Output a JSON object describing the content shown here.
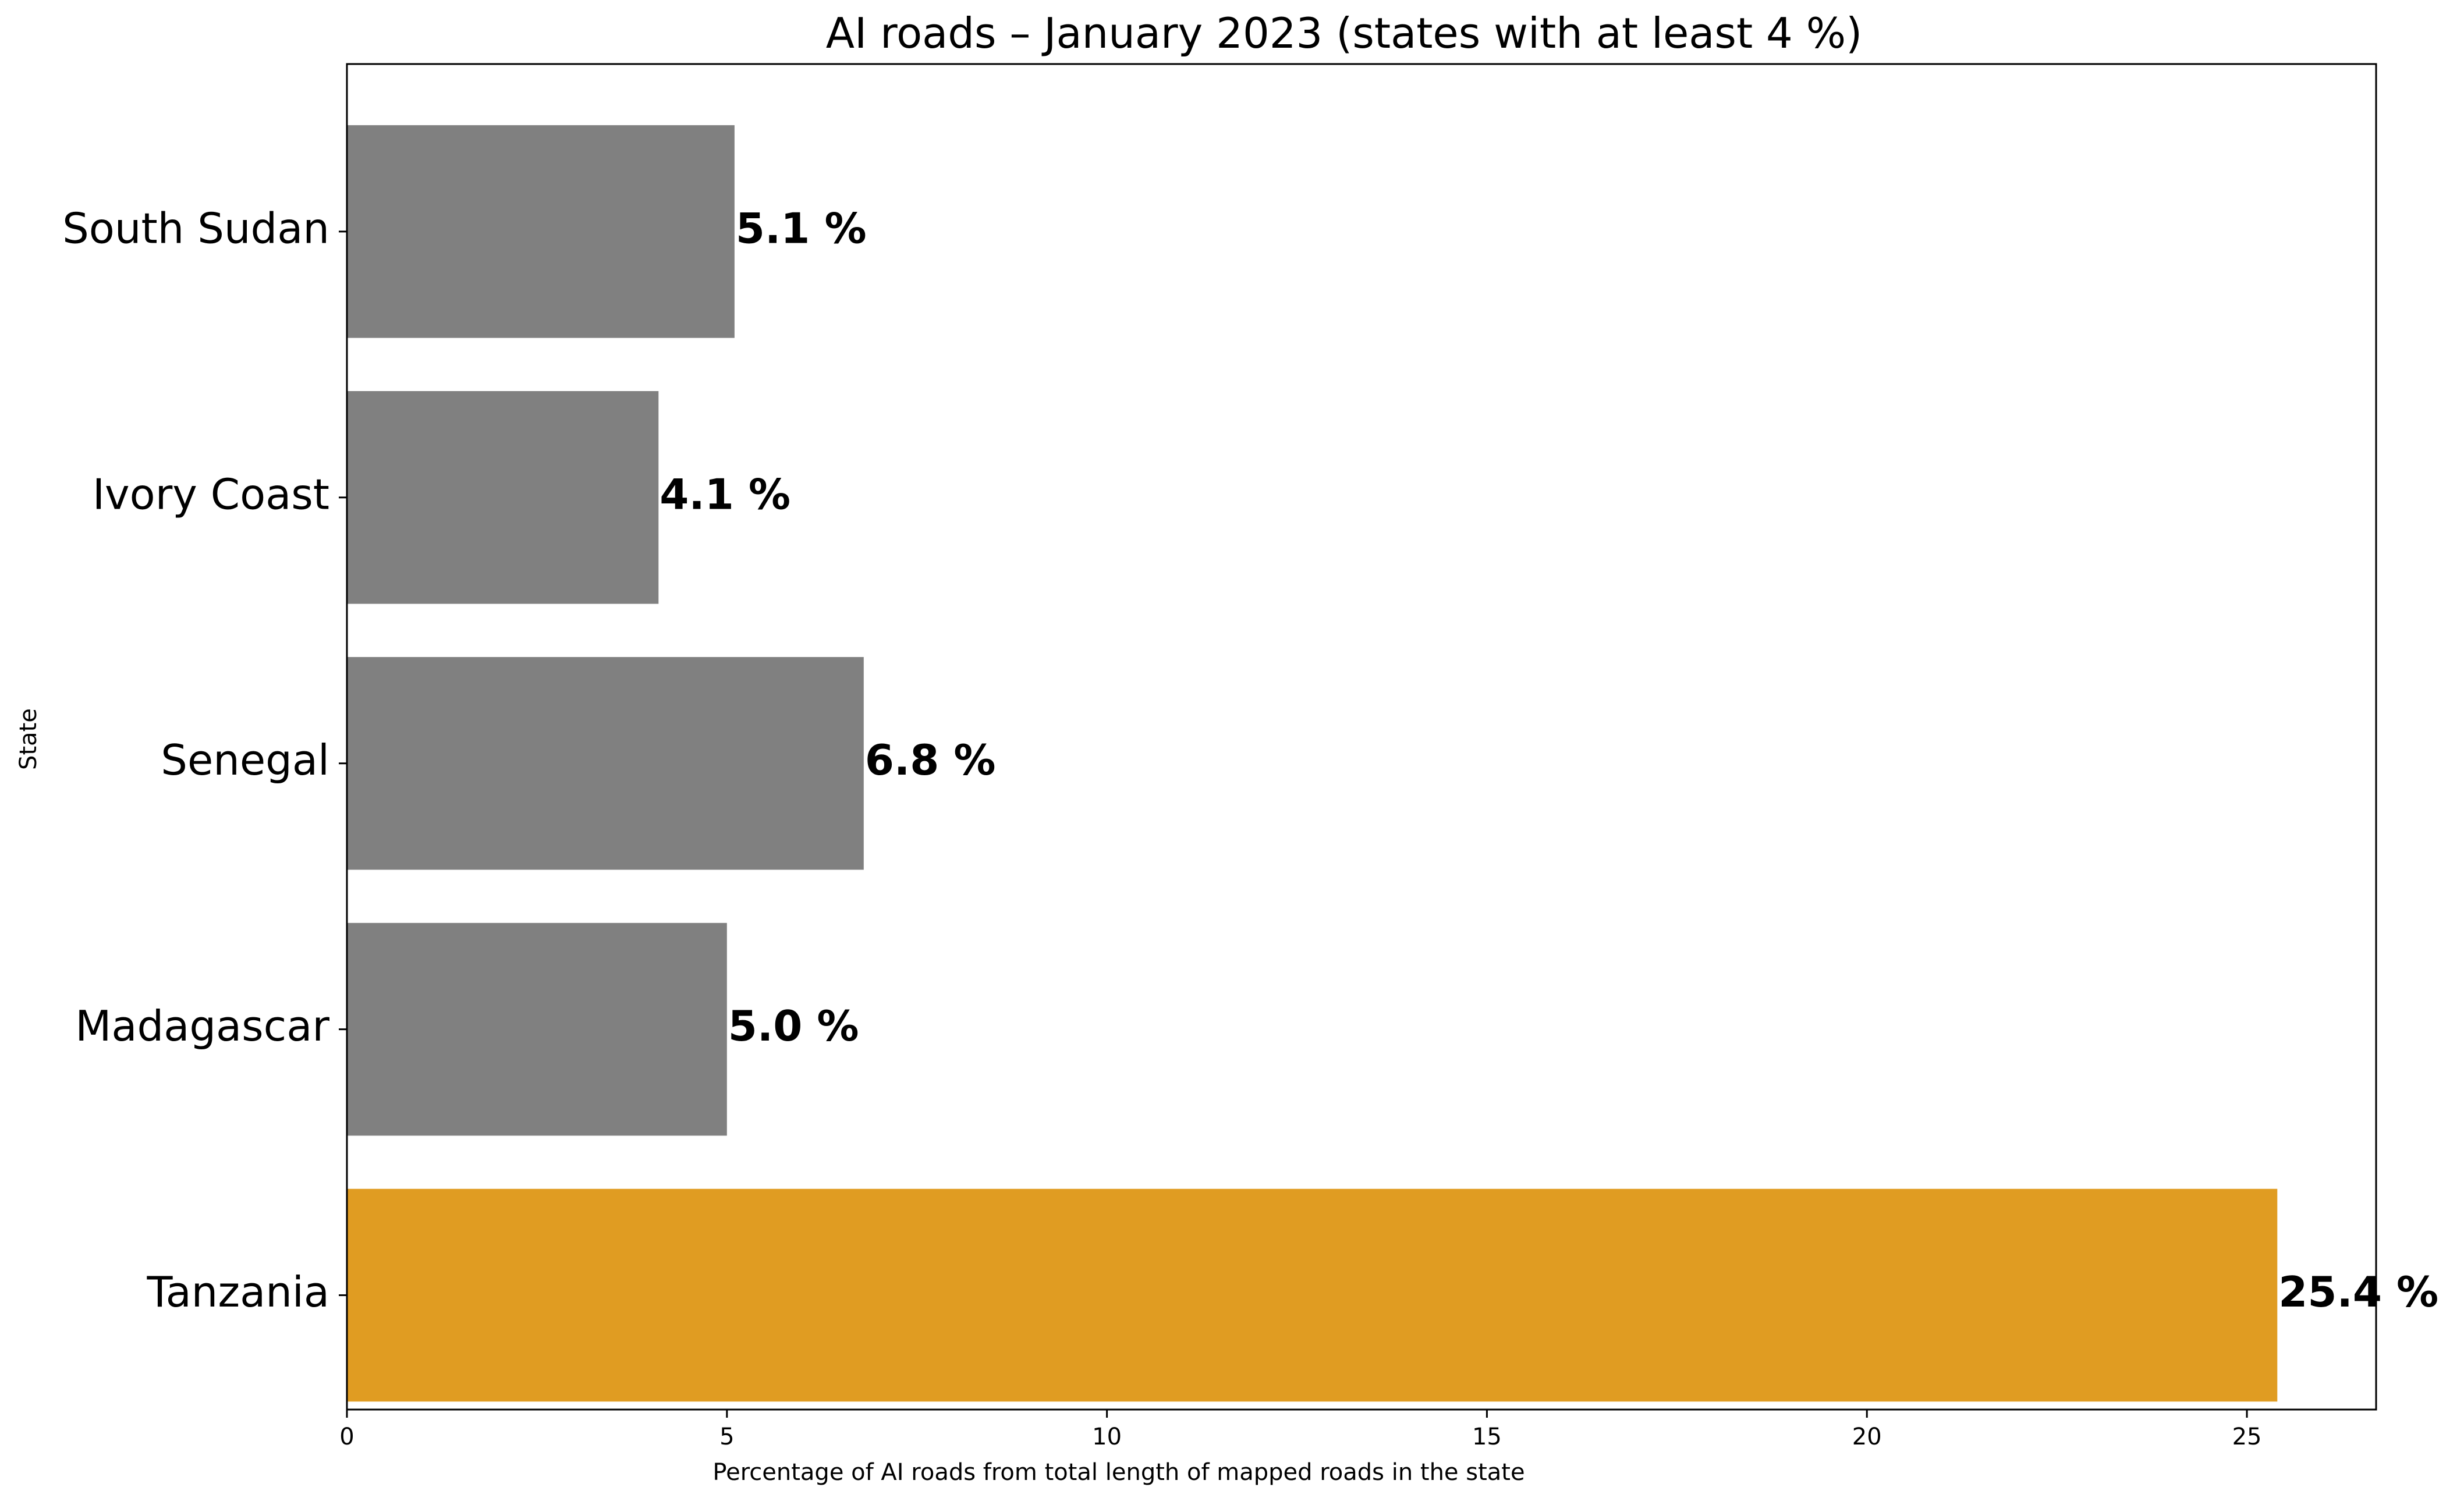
{
  "chart_data": {
    "type": "bar",
    "orientation": "horizontal",
    "title": "AI roads – January 2023 (states with at least 4 %)",
    "xlabel": "Percentage of AI roads from total length of mapped roads in the state",
    "ylabel": "State",
    "categories": [
      "South Sudan",
      "Ivory Coast",
      "Senegal",
      "Madagascar",
      "Tanzania"
    ],
    "values": [
      5.1,
      4.1,
      6.8,
      5.0,
      25.4
    ],
    "value_labels": [
      "5.1 %",
      "4.1 %",
      "6.8 %",
      "5.0 %",
      "25.4 %"
    ],
    "xlim": [
      0,
      26.7
    ],
    "xticks": [
      0,
      5,
      10,
      15,
      20,
      25
    ],
    "xtick_labels": [
      "0",
      "5",
      "10",
      "15",
      "20",
      "25"
    ],
    "colors": {
      "default_bar": "#808080",
      "highlight_bar": "#E09C22"
    },
    "highlight_category": "Tanzania",
    "grid": false,
    "legend": "none"
  }
}
